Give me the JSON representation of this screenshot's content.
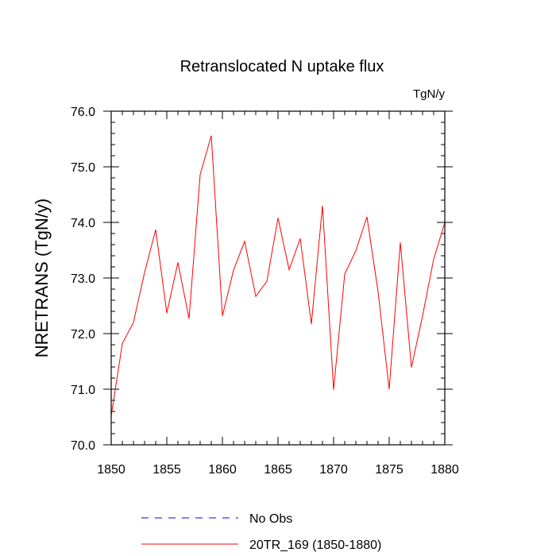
{
  "chart_data": {
    "type": "line",
    "title": "Retranslocated N uptake flux",
    "units_label": "TgN/y",
    "ylabel": "NRETRANS  (TgN/y)",
    "xlabel": "",
    "xlim": [
      1850,
      1880
    ],
    "ylim": [
      70.0,
      76.0
    ],
    "x_ticks": [
      1850,
      1855,
      1860,
      1865,
      1870,
      1875,
      1880
    ],
    "x_tick_labels": [
      "1850",
      "1855",
      "1860",
      "1865",
      "1870",
      "1875",
      "1880"
    ],
    "y_ticks": [
      70.0,
      71.0,
      72.0,
      73.0,
      74.0,
      75.0,
      76.0
    ],
    "y_tick_labels": [
      "70.0",
      "71.0",
      "72.0",
      "73.0",
      "74.0",
      "75.0",
      "76.0"
    ],
    "grid": false,
    "legend_position": "bottom",
    "series": [
      {
        "name": "No Obs",
        "color": "#0000ff",
        "style": "dashed",
        "x": [],
        "y": []
      },
      {
        "name": "20TR_169 (1850-1880)",
        "color": "#ff0000",
        "style": "solid",
        "x": [
          1850,
          1851,
          1852,
          1853,
          1854,
          1855,
          1856,
          1857,
          1858,
          1859,
          1860,
          1861,
          1862,
          1863,
          1864,
          1865,
          1866,
          1867,
          1868,
          1869,
          1870,
          1871,
          1872,
          1873,
          1874,
          1875,
          1876,
          1877,
          1878,
          1879,
          1880
        ],
        "y": [
          70.52,
          71.82,
          72.2,
          73.1,
          73.87,
          72.37,
          73.28,
          72.27,
          74.86,
          75.56,
          72.32,
          73.14,
          73.66,
          72.67,
          72.94,
          74.08,
          73.15,
          73.71,
          72.17,
          74.3,
          70.99,
          73.07,
          73.49,
          74.1,
          72.75,
          71.0,
          73.64,
          71.39,
          72.32,
          73.34,
          74.0
        ]
      }
    ]
  }
}
